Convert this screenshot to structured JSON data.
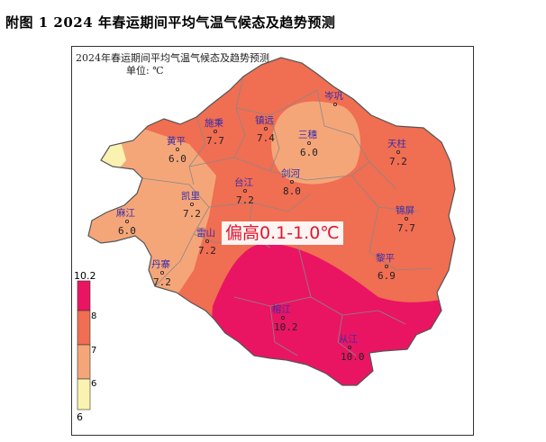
{
  "figure": {
    "caption": "附图 1  2024 年春运期间平均气温气候态及趋势预测",
    "map_title": "2024年春运期间平均气温气候态及趋势预测",
    "unit": "单位: ℃",
    "anomaly_label": "偏高0.1-1.0℃"
  },
  "legend": {
    "max_label": "10.2",
    "min_label": "6",
    "bins": [
      {
        "label": "8",
        "color": "#ea1562"
      },
      {
        "label": "7",
        "color": "#f06e52"
      },
      {
        "label": "6",
        "color": "#f5a679"
      },
      {
        "label": "",
        "color": "#faf2b0"
      }
    ]
  },
  "cities": [
    {
      "name": "黄平",
      "value": "6.0"
    },
    {
      "name": "施秉",
      "value": "7.7"
    },
    {
      "name": "镇远",
      "value": "7.4"
    },
    {
      "name": "岑巩",
      "value": ""
    },
    {
      "name": "三穗",
      "value": "6.0"
    },
    {
      "name": "天柱",
      "value": "7.2"
    },
    {
      "name": "剑河",
      "value": "8.0"
    },
    {
      "name": "台江",
      "value": "7.2"
    },
    {
      "name": "凯里",
      "value": "7.2"
    },
    {
      "name": "麻江",
      "value": "6.0"
    },
    {
      "name": "锦屏",
      "value": "7.7"
    },
    {
      "name": "雷山",
      "value": "7.2"
    },
    {
      "name": "丹寨",
      "value": "7.2"
    },
    {
      "name": "黎平",
      "value": "6.9"
    },
    {
      "name": "榕江",
      "value": "10.2"
    },
    {
      "name": "从江",
      "value": "10.0"
    }
  ]
}
